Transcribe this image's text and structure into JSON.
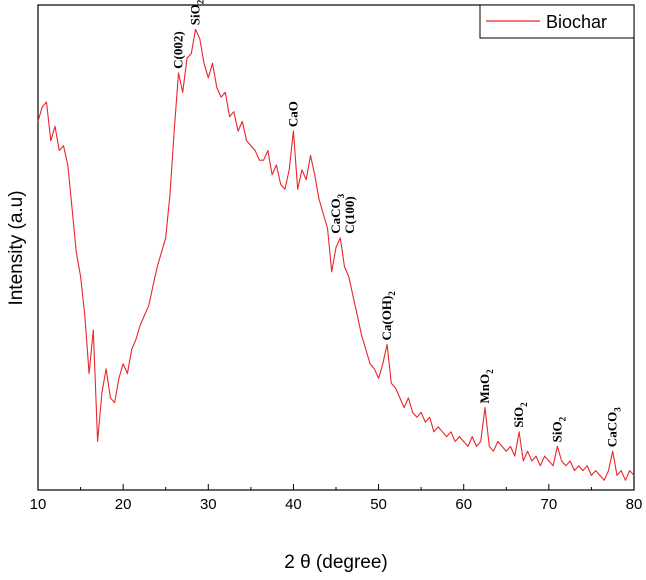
{
  "chart_data": {
    "type": "line",
    "title": "",
    "xlabel": "2 θ (degree)",
    "ylabel": "Intensity (a.u)",
    "xlim": [
      10,
      80
    ],
    "ylim": [
      0,
      1
    ],
    "x_ticks": [
      "10",
      "20",
      "30",
      "40",
      "50",
      "60",
      "70",
      "80"
    ],
    "y_ticks_labeled": false,
    "grid": false,
    "legend": {
      "position": "top-right",
      "entries": [
        "Biochar"
      ]
    },
    "series": [
      {
        "name": "Biochar",
        "color": "#e8262b",
        "points": [
          [
            10.0,
            0.76
          ],
          [
            10.5,
            0.79
          ],
          [
            11.0,
            0.8
          ],
          [
            11.5,
            0.72
          ],
          [
            12.0,
            0.75
          ],
          [
            12.5,
            0.7
          ],
          [
            13.0,
            0.71
          ],
          [
            13.5,
            0.67
          ],
          [
            14.0,
            0.58
          ],
          [
            14.5,
            0.49
          ],
          [
            15.0,
            0.44
          ],
          [
            15.5,
            0.36
          ],
          [
            16.0,
            0.24
          ],
          [
            16.5,
            0.33
          ],
          [
            17.0,
            0.1
          ],
          [
            17.5,
            0.2
          ],
          [
            18.0,
            0.25
          ],
          [
            18.5,
            0.19
          ],
          [
            19.0,
            0.18
          ],
          [
            19.5,
            0.23
          ],
          [
            20.0,
            0.26
          ],
          [
            20.5,
            0.24
          ],
          [
            21.0,
            0.29
          ],
          [
            21.5,
            0.31
          ],
          [
            22.0,
            0.34
          ],
          [
            22.5,
            0.36
          ],
          [
            23.0,
            0.38
          ],
          [
            23.5,
            0.42
          ],
          [
            24.0,
            0.46
          ],
          [
            24.5,
            0.49
          ],
          [
            25.0,
            0.52
          ],
          [
            25.5,
            0.61
          ],
          [
            26.0,
            0.74
          ],
          [
            26.5,
            0.86
          ],
          [
            27.0,
            0.82
          ],
          [
            27.5,
            0.89
          ],
          [
            28.0,
            0.9
          ],
          [
            28.5,
            0.95
          ],
          [
            29.0,
            0.93
          ],
          [
            29.5,
            0.88
          ],
          [
            30.0,
            0.85
          ],
          [
            30.5,
            0.88
          ],
          [
            31.0,
            0.83
          ],
          [
            31.5,
            0.81
          ],
          [
            32.0,
            0.82
          ],
          [
            32.5,
            0.77
          ],
          [
            33.0,
            0.78
          ],
          [
            33.5,
            0.74
          ],
          [
            34.0,
            0.76
          ],
          [
            34.5,
            0.72
          ],
          [
            35.0,
            0.71
          ],
          [
            35.5,
            0.7
          ],
          [
            36.0,
            0.68
          ],
          [
            36.5,
            0.68
          ],
          [
            37.0,
            0.7
          ],
          [
            37.5,
            0.65
          ],
          [
            38.0,
            0.67
          ],
          [
            38.5,
            0.63
          ],
          [
            39.0,
            0.62
          ],
          [
            39.5,
            0.66
          ],
          [
            40.0,
            0.74
          ],
          [
            40.5,
            0.62
          ],
          [
            41.0,
            0.66
          ],
          [
            41.5,
            0.64
          ],
          [
            42.0,
            0.69
          ],
          [
            42.5,
            0.65
          ],
          [
            43.0,
            0.6
          ],
          [
            43.5,
            0.57
          ],
          [
            44.0,
            0.54
          ],
          [
            44.5,
            0.45
          ],
          [
            45.0,
            0.5
          ],
          [
            45.5,
            0.52
          ],
          [
            46.0,
            0.46
          ],
          [
            46.5,
            0.44
          ],
          [
            47.0,
            0.4
          ],
          [
            47.5,
            0.36
          ],
          [
            48.0,
            0.32
          ],
          [
            48.5,
            0.29
          ],
          [
            49.0,
            0.26
          ],
          [
            49.5,
            0.25
          ],
          [
            50.0,
            0.23
          ],
          [
            50.5,
            0.26
          ],
          [
            51.0,
            0.3
          ],
          [
            51.5,
            0.22
          ],
          [
            52.0,
            0.21
          ],
          [
            52.5,
            0.19
          ],
          [
            53.0,
            0.17
          ],
          [
            53.5,
            0.19
          ],
          [
            54.0,
            0.16
          ],
          [
            54.5,
            0.15
          ],
          [
            55.0,
            0.16
          ],
          [
            55.5,
            0.14
          ],
          [
            56.0,
            0.15
          ],
          [
            56.5,
            0.12
          ],
          [
            57.0,
            0.13
          ],
          [
            57.5,
            0.12
          ],
          [
            58.0,
            0.11
          ],
          [
            58.5,
            0.12
          ],
          [
            59.0,
            0.1
          ],
          [
            59.5,
            0.11
          ],
          [
            60.0,
            0.1
          ],
          [
            60.5,
            0.09
          ],
          [
            61.0,
            0.11
          ],
          [
            61.5,
            0.09
          ],
          [
            62.0,
            0.1
          ],
          [
            62.5,
            0.17
          ],
          [
            63.0,
            0.09
          ],
          [
            63.5,
            0.08
          ],
          [
            64.0,
            0.1
          ],
          [
            64.5,
            0.09
          ],
          [
            65.0,
            0.08
          ],
          [
            65.5,
            0.09
          ],
          [
            66.0,
            0.07
          ],
          [
            66.5,
            0.12
          ],
          [
            67.0,
            0.06
          ],
          [
            67.5,
            0.08
          ],
          [
            68.0,
            0.06
          ],
          [
            68.5,
            0.07
          ],
          [
            69.0,
            0.05
          ],
          [
            69.5,
            0.07
          ],
          [
            70.0,
            0.06
          ],
          [
            70.5,
            0.05
          ],
          [
            71.0,
            0.09
          ],
          [
            71.5,
            0.06
          ],
          [
            72.0,
            0.05
          ],
          [
            72.5,
            0.06
          ],
          [
            73.0,
            0.04
          ],
          [
            73.5,
            0.05
          ],
          [
            74.0,
            0.04
          ],
          [
            74.5,
            0.05
          ],
          [
            75.0,
            0.03
          ],
          [
            75.5,
            0.04
          ],
          [
            76.0,
            0.03
          ],
          [
            76.5,
            0.02
          ],
          [
            77.0,
            0.04
          ],
          [
            77.5,
            0.08
          ],
          [
            78.0,
            0.03
          ],
          [
            78.5,
            0.04
          ],
          [
            79.0,
            0.02
          ],
          [
            79.5,
            0.04
          ],
          [
            80.0,
            0.03
          ]
        ]
      }
    ],
    "annotations": [
      {
        "x": 26.5,
        "y": 0.86,
        "text": "C(002)",
        "sub": ""
      },
      {
        "x": 28.5,
        "y": 0.95,
        "text": "SiO",
        "sub": "2"
      },
      {
        "x": 40.0,
        "y": 0.74,
        "text": "CaO",
        "sub": ""
      },
      {
        "x": 45.0,
        "y": 0.52,
        "text": "CaCO",
        "sub": "3"
      },
      {
        "x": 45.0,
        "y": 0.52,
        "text": "C(100)",
        "sub": ""
      },
      {
        "x": 51.0,
        "y": 0.3,
        "text": "Ca(OH)",
        "sub": "2"
      },
      {
        "x": 62.5,
        "y": 0.17,
        "text": "MnO",
        "sub": "2"
      },
      {
        "x": 66.5,
        "y": 0.12,
        "text": "SiO",
        "sub": "2"
      },
      {
        "x": 71.0,
        "y": 0.09,
        "text": "SiO",
        "sub": "2"
      },
      {
        "x": 77.5,
        "y": 0.08,
        "text": "CaCO",
        "sub": "3"
      }
    ]
  }
}
